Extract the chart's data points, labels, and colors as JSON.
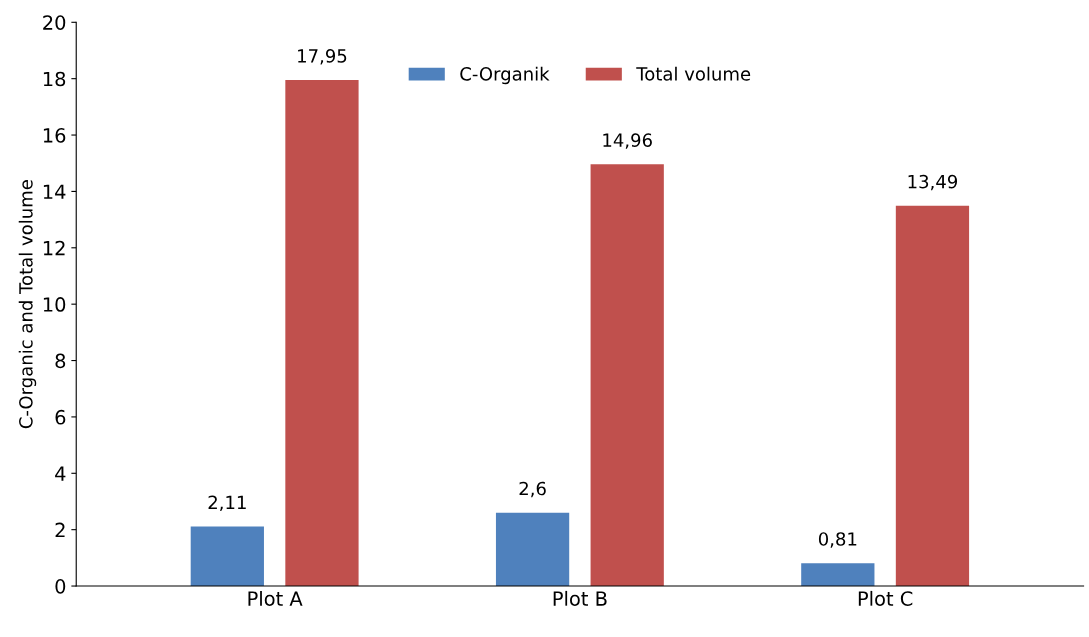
{
  "chart_data": {
    "type": "bar",
    "ylabel": "C-Organic and Total volume",
    "categories": [
      "Plot A",
      "Plot B",
      "Plot C"
    ],
    "series": [
      {
        "name": "C-Organik",
        "color": "#4f81bd",
        "values": [
          2.11,
          2.6,
          0.81
        ],
        "value_labels": [
          "2,11",
          "2,6",
          "0,81"
        ]
      },
      {
        "name": "Total volume",
        "color": "#c0504d",
        "values": [
          17.95,
          14.96,
          13.49
        ],
        "value_labels": [
          "17,95",
          "14,96",
          "13,49"
        ]
      }
    ],
    "ylim": [
      0,
      20
    ],
    "yticks": [
      0,
      2,
      4,
      6,
      8,
      10,
      12,
      14,
      16,
      18,
      20
    ],
    "grid": false,
    "legend": "top"
  }
}
